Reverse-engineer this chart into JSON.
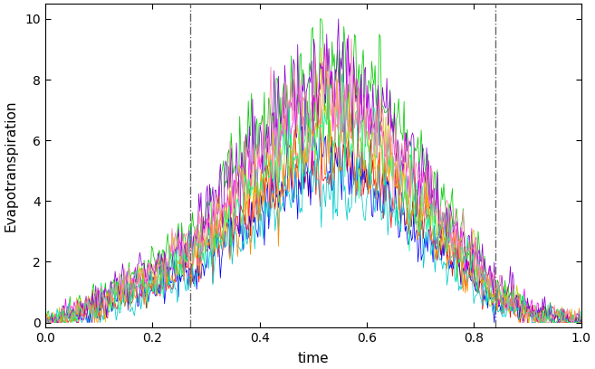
{
  "xlabel": "time",
  "ylabel": "Evapotranspiration",
  "xlim": [
    0.0,
    1.0
  ],
  "ylim": [
    -0.15,
    10.5
  ],
  "yticks": [
    0,
    2,
    4,
    6,
    8,
    10
  ],
  "xticks": [
    0.0,
    0.2,
    0.4,
    0.6,
    0.8,
    1.0
  ],
  "vline1": 0.27,
  "vline2": 0.84,
  "n_series": 10,
  "n_points": 500,
  "seed": 77,
  "colors": [
    "#FF0000",
    "#0000FF",
    "#00CC00",
    "#FF00FF",
    "#00CCCC",
    "#CCCC00",
    "#FF8800",
    "#8800CC",
    "#00FF88",
    "#FF88AA"
  ],
  "background_color": "#ffffff",
  "figsize": [
    6.57,
    4.08
  ],
  "dpi": 100,
  "lw": 0.55
}
